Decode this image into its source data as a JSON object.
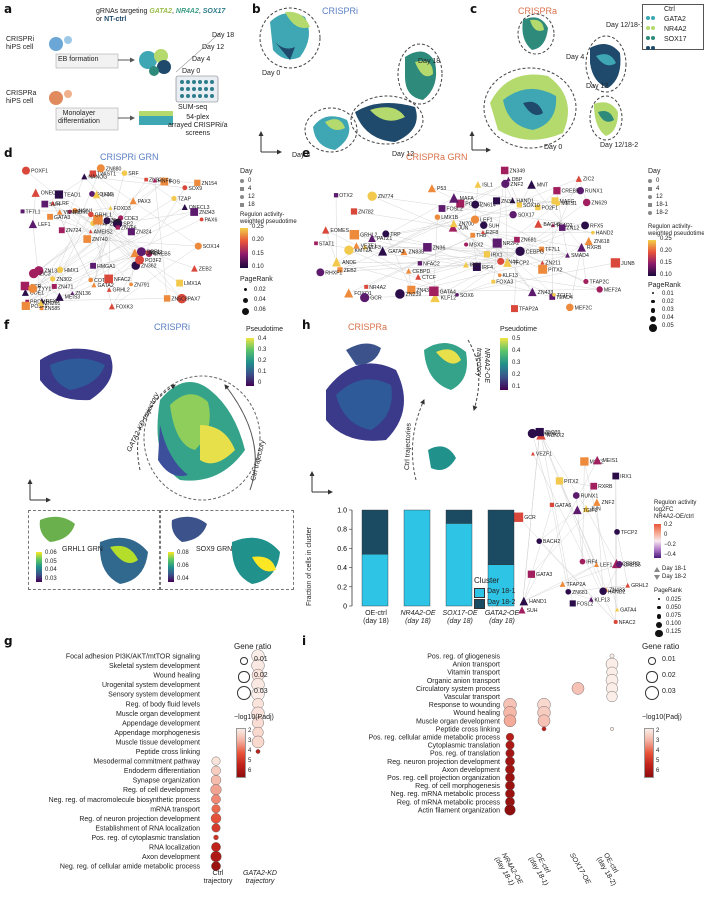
{
  "panels": {
    "a": {
      "letter": "a",
      "header_prefix": "gRNAs targeting ",
      "targets": [
        "GATA2",
        "NR4A2",
        "SOX17",
        "NT-ctrl"
      ],
      "target_colors": [
        "#b4d96d",
        "#63b89d",
        "#2e7d8a",
        "#1f4a6b"
      ],
      "crispri_cell": "CRISPRi\nhiPS cell",
      "crispra_cell": "CRISPRa\nhiPS cell",
      "eb": "EB formation",
      "mono": "Monolayer\ndifferentiation",
      "days": [
        "Day 0",
        "Day 4",
        "Day 12",
        "Day 18"
      ],
      "sumseq": "SUM-seq",
      "screens": "54-plex\narrayed CRISPRi/a\nscreens"
    },
    "b": {
      "letter": "b",
      "title": "CRISPRi",
      "day_labels": [
        "Day 0",
        "Day 4",
        "Day 12",
        "Day 18"
      ]
    },
    "c": {
      "letter": "c",
      "title": "CRISPRa",
      "day_labels": [
        "Day 12/18-1",
        "Day 4",
        "Day 12",
        "Day 0",
        "Day 12/18-2"
      ],
      "legend": [
        {
          "name": "Ctrl",
          "color": "#3aa8b5"
        },
        {
          "name": "GATA2",
          "color": "#b4d96d"
        },
        {
          "name": "NR4A2",
          "color": "#2e8a7a"
        },
        {
          "name": "SOX17",
          "color": "#1f4a6b"
        }
      ]
    },
    "d": {
      "letter": "d",
      "title": "CRISPRi GRN",
      "day_legend_title": "Day",
      "day_values": [
        "0",
        "4",
        "12",
        "18"
      ],
      "colorbar_title": "Regulon activity-\nweighted pseudotime",
      "colorbar_ticks": [
        "0.25",
        "0.20",
        "0.15",
        "0.10"
      ],
      "pagerank_title": "PageRank",
      "pagerank_values": [
        "0.02",
        "0.04",
        "0.06"
      ],
      "nodes": [
        "PAX7",
        "LEF1",
        "SOX9",
        "ZN740",
        "PAX3",
        "RFX3",
        "SOX10",
        "FOXD3",
        "ZN133",
        "NGN1",
        "COE1",
        "ZN471",
        "LHX6",
        "CDE3",
        "CREB5",
        "ONECL2",
        "TWIST1",
        "PAX6",
        "NR6A1",
        "ONECL3",
        "AMEIS2",
        "COT1",
        "TFAP2A",
        "TEAD1",
        "ZN823",
        "HMX1",
        "ZN5C8",
        "LMX1A",
        "ELF2",
        "FOXK3",
        "MEIS1",
        "GATA3",
        "ZN362",
        "MEIS3",
        "ZN343",
        "SP2",
        "PRDM1",
        "GATA2",
        "ZN766",
        "ZIC3",
        "TZAP",
        "ZN154",
        "PO3F2",
        "ZN791",
        "ZN302",
        "ZN585",
        "PO3F1",
        "NFAC2",
        "FOS",
        "ZN880",
        "ZN724",
        "TF7L1",
        "FLRF",
        "HNF6",
        "ZN261",
        "SRF",
        "NANOG",
        "ZN754",
        "ZEB2",
        "HMGA1",
        "ZN136",
        "DPF1",
        "VENTX",
        "CCR",
        "POXF1",
        "SUH",
        "SOX14",
        "GRHL1",
        "GRHL2",
        "ZOF",
        "TYY1",
        "ZN324"
      ]
    },
    "e": {
      "letter": "e",
      "title": "CRISPRa GRN",
      "day_legend_title": "Day",
      "day_values": [
        "0",
        "4",
        "12",
        "18-1",
        "18-2"
      ],
      "colorbar_title": "Regulon activity-\nweighted pseudotime",
      "colorbar_ticks": [
        "0.25",
        "0.20",
        "0.15",
        "0.10"
      ],
      "pagerank_title": "PageRank",
      "pagerank_values": [
        "0.01",
        "0.02",
        "0.03",
        "0.04",
        "0.05"
      ],
      "nodes": [
        "MEF2C",
        "ELF3",
        "ZN44",
        "OTX2",
        "TFAP2C",
        "ZN782",
        "NR4A2",
        "ZN835",
        "PO2F1",
        "PO5F1",
        "SOX10",
        "TEAD4",
        "CTCF",
        "P53",
        "NR2F2",
        "ZEB2",
        "TF7L1",
        "THB",
        "EOMES",
        "FOXO1",
        "ZIC2",
        "ZN614",
        "TEAD1",
        "JUNB",
        "ZN618",
        "GRHL2",
        "GATA3",
        "MSX2",
        "JUN",
        "RUNX1",
        "TFCP2",
        "KMT2A",
        "CEBPD",
        "HAND1",
        "FOSL2",
        "SMAD4",
        "RXRB",
        "ZN433",
        "CREB5",
        "TFAP2A",
        "NFAC2",
        "IRF4",
        "ZN43",
        "ZN349",
        "ZN36",
        "PATZ1",
        "ZN629",
        "DBP",
        "ZN31",
        "IRF7",
        "CEBPG",
        "RFX5",
        "ZN211",
        "ZN12",
        "LMX1B",
        "STAT1",
        "KLF12",
        "ZN700",
        "IRX1",
        "BACH2",
        "GATA4",
        "MAFG",
        "ZN774",
        "ISL1",
        "RHXF1",
        "ANDE",
        "TRP",
        "E2F8",
        "MNT",
        "MEIS1",
        "PITX2",
        "SOX6",
        "FOXA3",
        "MEF2A",
        "SOX17",
        "HAND2",
        "MAFA",
        "KLF13",
        "VEZF1",
        "ZNF2",
        "ZN681",
        "SUH",
        "TGIF1",
        "GCR",
        "LEF1",
        "ZN239"
      ]
    },
    "f": {
      "letter": "f",
      "title": "CRISPRi",
      "cbar_title": "Pseudotime",
      "cbar_ticks": [
        "0.4",
        "0.3",
        "0.2",
        "0.1",
        "0"
      ],
      "traj_labels": [
        "GATA2-KD trajectory",
        "Ctrl trajectory"
      ],
      "sub1": {
        "name": "GRHL1 GRN",
        "ticks": [
          "0.06",
          "0.05",
          "0.04",
          "0.03"
        ]
      },
      "sub2": {
        "name": "SOX9 GRN",
        "ticks": [
          "0.08",
          "0.06",
          "0.04"
        ]
      }
    },
    "g": {
      "letter": "g",
      "size_title": "Gene ratio",
      "size_values": [
        "0.01",
        "0.02",
        "0.03"
      ],
      "color_title": "−log10(Padj)",
      "color_ticks": [
        "2",
        "3",
        "4",
        "5",
        "6"
      ],
      "columns": [
        "Ctrl\ntrajectory",
        "GATA2-KD\ntrajectory"
      ],
      "terms": [
        "Focal adhesion PI3K/AKT/mtTOR signaling",
        "Skeletal system development",
        "Wound healing",
        "Urogenital system development",
        "Sensory system development",
        "Reg. of body fluid levels",
        "Muscle organ development",
        "Appendage development",
        "Appendage morphogenesis",
        "Muscle tissue development",
        "Peptide cross linking",
        "Mesodermal commitment pathway",
        "Endoderm differentiation",
        "Synapse organization",
        "Reg. of cell development",
        "Neg. reg. of macromolecule biosynthetic process",
        "mRNA transport",
        "Reg. of neuron projection development",
        "Establishment of RNA localization",
        "Pos. reg. of cytoplasmic translation",
        "RNA localization",
        "Axon development",
        "Neg. reg. of cellular amide metabolic process"
      ],
      "dots": [
        {
          "row": 0,
          "col": 1,
          "ratio": 0.03,
          "lp": 2.0
        },
        {
          "row": 1,
          "col": 1,
          "ratio": 0.03,
          "lp": 2.1
        },
        {
          "row": 2,
          "col": 1,
          "ratio": 0.028,
          "lp": 2.2
        },
        {
          "row": 3,
          "col": 1,
          "ratio": 0.03,
          "lp": 2.1
        },
        {
          "row": 4,
          "col": 1,
          "ratio": 0.03,
          "lp": 2.0
        },
        {
          "row": 5,
          "col": 1,
          "ratio": 0.025,
          "lp": 2.2
        },
        {
          "row": 6,
          "col": 1,
          "ratio": 0.03,
          "lp": 2.2
        },
        {
          "row": 7,
          "col": 1,
          "ratio": 0.026,
          "lp": 2.3
        },
        {
          "row": 8,
          "col": 1,
          "ratio": 0.024,
          "lp": 2.4
        },
        {
          "row": 9,
          "col": 1,
          "ratio": 0.028,
          "lp": 2.4
        },
        {
          "row": 10,
          "col": 1,
          "ratio": 0.006,
          "lp": 5.5
        },
        {
          "row": 11,
          "col": 0,
          "ratio": 0.018,
          "lp": 2.2
        },
        {
          "row": 12,
          "col": 0,
          "ratio": 0.02,
          "lp": 2.6
        },
        {
          "row": 13,
          "col": 0,
          "ratio": 0.022,
          "lp": 2.9
        },
        {
          "row": 14,
          "col": 0,
          "ratio": 0.024,
          "lp": 3.3
        },
        {
          "row": 15,
          "col": 0,
          "ratio": 0.02,
          "lp": 3.6
        },
        {
          "row": 16,
          "col": 0,
          "ratio": 0.018,
          "lp": 4.0
        },
        {
          "row": 17,
          "col": 0,
          "ratio": 0.022,
          "lp": 4.3
        },
        {
          "row": 18,
          "col": 0,
          "ratio": 0.018,
          "lp": 4.8
        },
        {
          "row": 19,
          "col": 0,
          "ratio": 0.008,
          "lp": 5.0
        },
        {
          "row": 20,
          "col": 0,
          "ratio": 0.02,
          "lp": 5.4
        },
        {
          "row": 21,
          "col": 0,
          "ratio": 0.024,
          "lp": 5.8
        },
        {
          "row": 22,
          "col": 0,
          "ratio": 0.02,
          "lp": 6.2
        }
      ]
    },
    "h": {
      "letter": "h",
      "title": "CRISPRa",
      "cbar_title": "Pseudotime",
      "cbar_ticks": [
        "0.5",
        "0.4",
        "0.3",
        "0.2",
        "0.1"
      ],
      "traj_labels": [
        "NR4A2-OE\ntrajectory",
        "Ctrl trajectories"
      ],
      "net_colorbar_title": "Regulon activity\nlog2FC\nNR4A2-OE/ctrl",
      "net_colorbar_ticks": [
        "0.2",
        "0",
        "−0.2",
        "−0.4"
      ],
      "net_day_values": [
        "Day 18-1",
        "Day 18-2"
      ],
      "net_pagerank_title": "PageRank",
      "net_pagerank_values": [
        "0.025",
        "0.050",
        "0.075",
        "0.100",
        "0.125"
      ],
      "net_nodes": [
        "GATA3",
        "JUN",
        "CEBPD",
        "GRHL2",
        "MSX2",
        "ZN433",
        "RUNX1",
        "RXRB",
        "CREB5",
        "HAND1",
        "RUNX2",
        "IRF4",
        "TFCP2",
        "FOSL2",
        "SMAD4",
        "TFAP2A",
        "NFAC2",
        "IRX1",
        "GATA4",
        "LEF1",
        "BACH2",
        "MEIS1",
        "GATA6",
        "PITX2",
        "ZN239",
        "GCR",
        "HAND2",
        "KLF13",
        "VEZF1",
        "ZNF2",
        "ZN681",
        "SUH",
        "TGIF1"
      ]
    },
    "bar": {
      "type": "bar",
      "ylabel": "Fraction of cells in cluster",
      "yticks": [
        "0",
        "0.2",
        "0.4",
        "0.6",
        "0.8",
        "1.0"
      ],
      "ylim": [
        0,
        1
      ],
      "categories": [
        "OE-ctrl\n(day 18)",
        "NR4A2-OE\n(day 18)",
        "SOX17-OE\n(day 18)",
        "GATA2-OE\n(day 18)"
      ],
      "legend_title": "Cluster",
      "series": [
        {
          "name": "Day 18-1",
          "color": "#2ec4e6",
          "values": [
            0.54,
            1.0,
            0.86,
            0.43
          ]
        },
        {
          "name": "Day 18-2",
          "color": "#1b4a63",
          "values": [
            0.46,
            0.0,
            0.14,
            0.57
          ]
        }
      ]
    },
    "i": {
      "letter": "i",
      "size_title": "Gene ratio",
      "size_values": [
        "0.01",
        "0.02",
        "0.03"
      ],
      "color_title": "−log10(Padj)",
      "color_ticks": [
        "2",
        "3",
        "4",
        "5",
        "6"
      ],
      "columns": [
        "NR4A2-OE\n(day 18-1)",
        "OE-ctrl\n(day 18-1)",
        "SOX17-OE",
        "OE-ctrl\n(day 18-2)"
      ],
      "terms": [
        "Pos. reg. of gliogenesis",
        "Anion transport",
        "Vitamin transport",
        "Organic anion transport",
        "Circulatory system process",
        "Vascular transport",
        "Response to wounding",
        "Wound healing",
        "Muscle organ development",
        "Peptide cross linking",
        "Pos. reg. cellular amide metabolic process",
        "Cytoplasmic translation",
        "Pos. reg. of translation",
        "Reg. neuron projection development",
        "Axon development",
        "Pos. reg. cell projection organization",
        "Reg. of cell morphogenesis",
        "Neg. reg. mRNA metabolic process",
        "Reg. of mRNA metabolic process",
        "Actin filament organization"
      ],
      "dots": [
        {
          "row": 0,
          "col": 3,
          "ratio": 0.006,
          "lp": 2.0
        },
        {
          "row": 1,
          "col": 3,
          "ratio": 0.028,
          "lp": 2.0
        },
        {
          "row": 2,
          "col": 3,
          "ratio": 0.024,
          "lp": 2.0
        },
        {
          "row": 3,
          "col": 3,
          "ratio": 0.028,
          "lp": 2.0
        },
        {
          "row": 4,
          "col": 2,
          "ratio": 0.028,
          "lp": 2.8
        },
        {
          "row": 4,
          "col": 3,
          "ratio": 0.026,
          "lp": 2.0
        },
        {
          "row": 5,
          "col": 3,
          "ratio": 0.024,
          "lp": 2.0
        },
        {
          "row": 6,
          "col": 0,
          "ratio": 0.03,
          "lp": 2.8
        },
        {
          "row": 6,
          "col": 1,
          "ratio": 0.03,
          "lp": 2.4
        },
        {
          "row": 7,
          "col": 0,
          "ratio": 0.03,
          "lp": 3.0
        },
        {
          "row": 7,
          "col": 1,
          "ratio": 0.03,
          "lp": 2.6
        },
        {
          "row": 8,
          "col": 0,
          "ratio": 0.028,
          "lp": 3.2
        },
        {
          "row": 8,
          "col": 1,
          "ratio": 0.028,
          "lp": 2.8
        },
        {
          "row": 9,
          "col": 1,
          "ratio": 0.006,
          "lp": 5.4
        },
        {
          "row": 9,
          "col": 3,
          "ratio": 0.004,
          "lp": 2.0
        },
        {
          "row": 10,
          "col": 0,
          "ratio": 0.016,
          "lp": 5.6
        },
        {
          "row": 11,
          "col": 0,
          "ratio": 0.018,
          "lp": 5.8
        },
        {
          "row": 12,
          "col": 0,
          "ratio": 0.018,
          "lp": 6.0
        },
        {
          "row": 13,
          "col": 0,
          "ratio": 0.02,
          "lp": 6.1
        },
        {
          "row": 14,
          "col": 0,
          "ratio": 0.02,
          "lp": 6.1
        },
        {
          "row": 15,
          "col": 0,
          "ratio": 0.02,
          "lp": 6.2
        },
        {
          "row": 16,
          "col": 0,
          "ratio": 0.02,
          "lp": 6.2
        },
        {
          "row": 17,
          "col": 0,
          "ratio": 0.02,
          "lp": 6.2
        },
        {
          "row": 18,
          "col": 0,
          "ratio": 0.02,
          "lp": 6.3
        },
        {
          "row": 19,
          "col": 0,
          "ratio": 0.024,
          "lp": 6.5
        }
      ]
    }
  }
}
